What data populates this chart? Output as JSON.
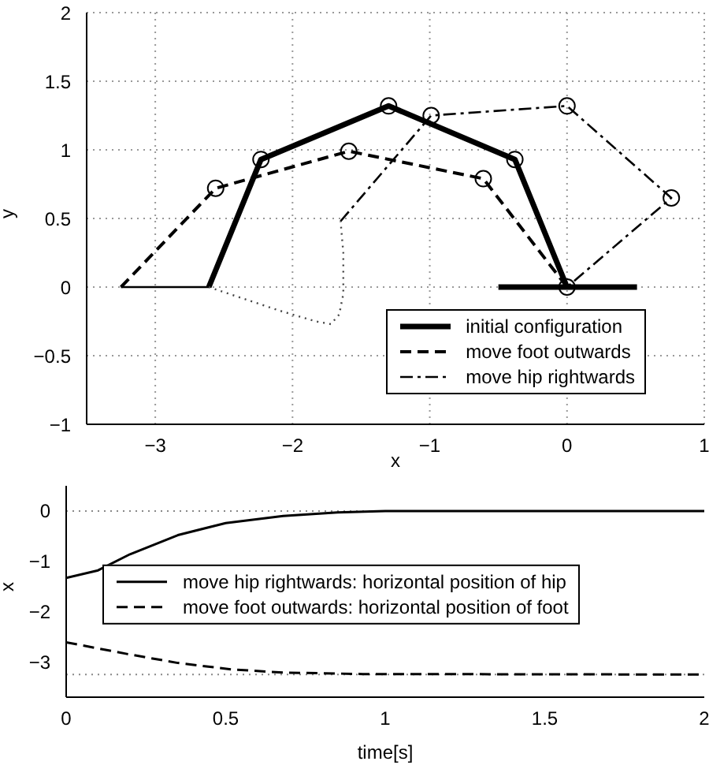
{
  "chart_data": [
    {
      "type": "line",
      "xlabel": "x",
      "ylabel": "y",
      "xlim": [
        -3.5,
        1
      ],
      "ylim": [
        -1,
        2
      ],
      "xticks": [
        -3,
        -2,
        -1,
        0,
        1
      ],
      "yticks": [
        -1,
        -0.5,
        0,
        0.5,
        1,
        1.5,
        2
      ],
      "grid": true,
      "legend": "bottom right",
      "series": [
        {
          "name": "initial configuration",
          "color": "#000000",
          "line_style": "solid",
          "x": [
            -2.61,
            -2.23,
            -1.3,
            -0.38,
            0
          ],
          "values": [
            0,
            0.93,
            1.32,
            0.93,
            0
          ]
        },
        {
          "name": "move foot outwards",
          "color": "#000000",
          "line_style": "dashed",
          "x": [
            -3.25,
            -2.56,
            -1.59,
            -0.61,
            0
          ],
          "values": [
            0,
            0.72,
            0.99,
            0.79,
            0
          ]
        },
        {
          "name": "move hip rightwards",
          "color": "#000000",
          "line_style": "dashdot",
          "x": [
            -1.65,
            -0.99,
            0,
            0.76,
            0
          ],
          "values": [
            0.48,
            1.25,
            1.32,
            0.65,
            0
          ]
        },
        {
          "color": "#000000",
          "line_style": "solid",
          "x": [
            -0.5,
            0.51
          ],
          "values": [
            0,
            0
          ]
        },
        {
          "color": "#000000",
          "line_style": "solid",
          "x": [
            -3.25,
            -2.61
          ],
          "values": [
            0,
            0
          ]
        },
        {
          "color": "#444444",
          "line_style": "dotted",
          "x": [
            -2.61,
            -2.4,
            -2.1,
            -1.83,
            -1.72,
            -1.66,
            -1.63,
            -1.63,
            -1.65
          ],
          "values": [
            0,
            -0.07,
            -0.17,
            -0.25,
            -0.27,
            -0.2,
            -0.05,
            0.25,
            0.48
          ]
        },
        {
          "type": "scatter",
          "marker": "circle",
          "color": "#000000",
          "x": [
            -2.23,
            -1.3,
            -0.38,
            0,
            -2.56,
            -1.59,
            -0.61,
            -0.99,
            0,
            0.76
          ],
          "values": [
            0.93,
            1.32,
            0.93,
            0,
            0.72,
            0.99,
            0.79,
            1.25,
            1.32,
            0.65
          ]
        }
      ]
    },
    {
      "type": "line",
      "xlabel": "time[s]",
      "ylabel": "x",
      "xlim": [
        0,
        2
      ],
      "ylim": [
        -3.7,
        0.5
      ],
      "xticks": [
        0,
        0.5,
        1,
        1.5,
        2
      ],
      "yticks": [
        -3,
        -2,
        -1,
        0
      ],
      "grid": false,
      "legend": "center left",
      "ref_lines": [
        {
          "axis": "y",
          "value": 0,
          "color": "#888888",
          "line_style": "dotted"
        },
        {
          "axis": "y",
          "value": -3.25,
          "color": "#888888",
          "line_style": "dotted"
        }
      ],
      "series": [
        {
          "name": "move hip rightwards: horizontal position of hip",
          "color": "#000000",
          "line_style": "solid",
          "x": [
            0,
            0.1,
            0.2,
            0.35,
            0.5,
            0.68,
            0.85,
            1,
            2
          ],
          "values": [
            -1.33,
            -1.18,
            -0.86,
            -0.48,
            -0.24,
            -0.1,
            -0.03,
            0,
            0
          ]
        },
        {
          "name": "move foot outwards: horizontal position of foot",
          "color": "#000000",
          "line_style": "dashed",
          "x": [
            0,
            0.19,
            0.35,
            0.52,
            0.68,
            0.93,
            2
          ],
          "values": [
            -2.61,
            -2.84,
            -3.02,
            -3.15,
            -3.21,
            -3.24,
            -3.25
          ]
        }
      ]
    }
  ]
}
